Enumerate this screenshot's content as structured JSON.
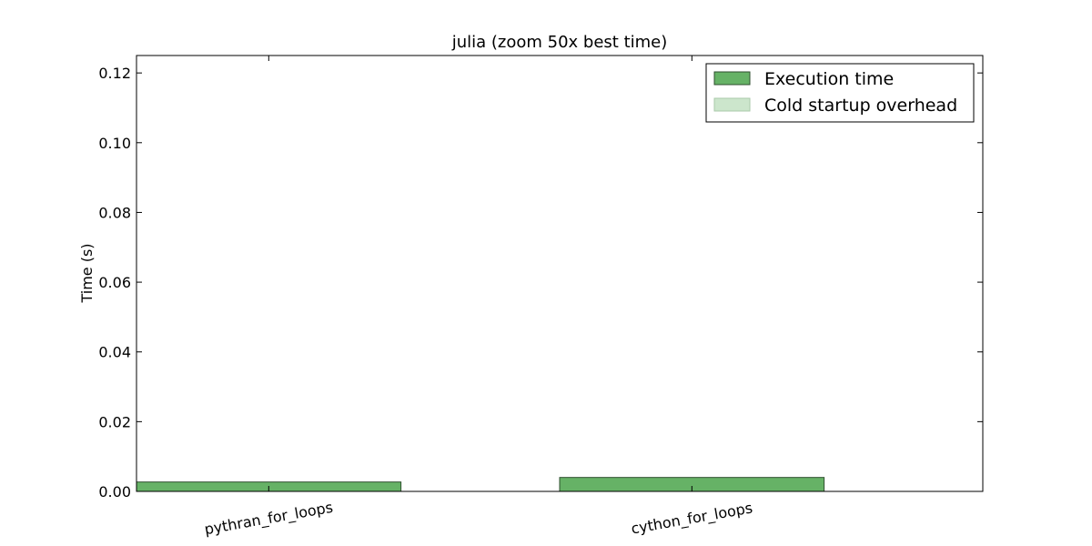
{
  "chart_data": {
    "type": "bar",
    "title": "julia (zoom 50x best time)",
    "xlabel": "",
    "ylabel": "Time (s)",
    "categories": [
      "pythran_for_loops",
      "cython_for_loops"
    ],
    "series": [
      {
        "name": "Execution time",
        "values": [
          0.0027,
          0.004
        ],
        "color": "#66b266",
        "edge": "#2f4f2f"
      },
      {
        "name": "Cold startup overhead",
        "values": [
          0,
          0
        ],
        "color": "#cce6cc",
        "edge": "#aac9aa"
      }
    ],
    "ylim": [
      0,
      0.125
    ],
    "yticks": [
      "0.00",
      "0.02",
      "0.04",
      "0.06",
      "0.08",
      "0.10",
      "0.12"
    ],
    "grid": false,
    "legend_position": "top-right"
  }
}
